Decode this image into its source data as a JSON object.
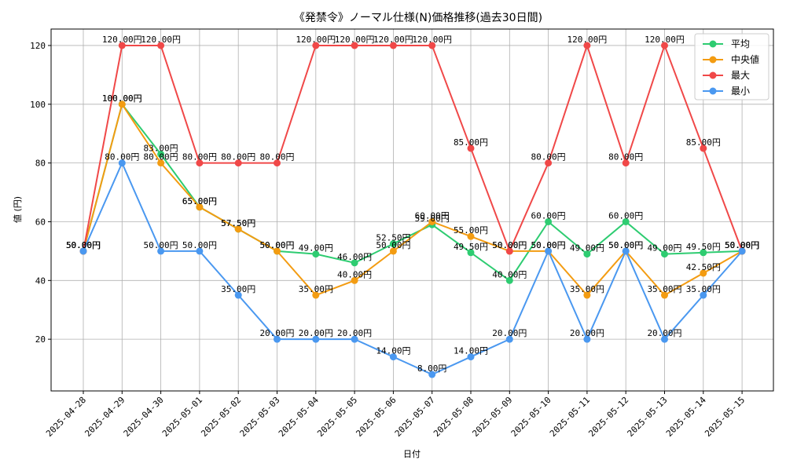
{
  "chart_data": {
    "type": "line",
    "title": "《発禁令》ノーマル仕様(N)価格推移(過去30日間)",
    "xlabel": "日付",
    "ylabel": "値 (円)",
    "ylim": [
      2.4,
      125.6
    ],
    "yticks": [
      20,
      40,
      60,
      80,
      100,
      120
    ],
    "grid": true,
    "legend": "top-right",
    "value_suffix": "円",
    "categories": [
      "2025-04-28",
      "2025-04-29",
      "2025-04-30",
      "2025-05-01",
      "2025-05-02",
      "2025-05-03",
      "2025-05-04",
      "2025-05-05",
      "2025-05-06",
      "2025-05-07",
      "2025-05-08",
      "2025-05-09",
      "2025-05-10",
      "2025-05-11",
      "2025-05-12",
      "2025-05-13",
      "2025-05-14",
      "2025-05-15"
    ],
    "series": [
      {
        "name": "平均",
        "color": "#2ecc71",
        "values": [
          50,
          100,
          83,
          65,
          57.5,
          50,
          49,
          46,
          52.5,
          59,
          49.5,
          40,
          60,
          49,
          60,
          49,
          49.5,
          50
        ]
      },
      {
        "name": "中央値",
        "color": "#f39c12",
        "values": [
          50,
          100,
          80,
          65,
          57.5,
          50,
          35,
          40,
          50,
          60,
          55,
          50,
          50,
          35,
          50,
          35,
          42.5,
          50
        ]
      },
      {
        "name": "最大",
        "color": "#f04848",
        "values": [
          50,
          120,
          120,
          80,
          80,
          80,
          120,
          120,
          120,
          120,
          85,
          50,
          80,
          120,
          80,
          120,
          85,
          50
        ]
      },
      {
        "name": "最小",
        "color": "#4a98f0",
        "values": [
          50,
          80,
          50,
          50,
          35,
          20,
          20,
          20,
          14,
          8,
          14,
          20,
          50,
          20,
          50,
          20,
          35,
          50
        ]
      }
    ]
  }
}
